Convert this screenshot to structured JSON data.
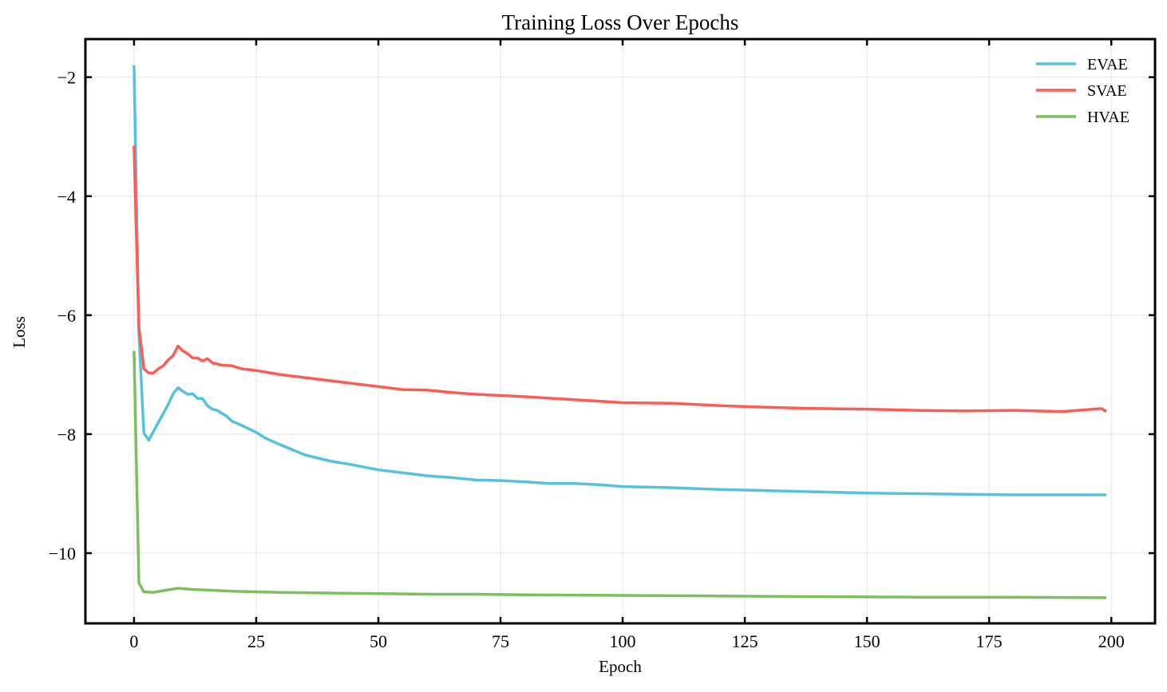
{
  "chart_data": {
    "type": "line",
    "title": "Training Loss Over Epochs",
    "xlabel": "Epoch",
    "ylabel": "Loss",
    "xlim": [
      -9.95,
      208.95
    ],
    "ylim": [
      -11.18,
      -1.36
    ],
    "xticks": [
      0,
      25,
      50,
      75,
      100,
      125,
      150,
      175,
      200
    ],
    "xtick_labels": [
      "0",
      "25",
      "50",
      "75",
      "100",
      "125",
      "150",
      "175",
      "200"
    ],
    "yticks": [
      -2,
      -4,
      -6,
      -8,
      -10
    ],
    "ytick_labels": [
      "−2",
      "−4",
      "−6",
      "−8",
      "−10"
    ],
    "grid": true,
    "legend": "top-right",
    "series": [
      {
        "name": "EVAE",
        "color": "#56c1de",
        "x": [
          0,
          1,
          2,
          3,
          4,
          5,
          6,
          7,
          8,
          9,
          10,
          11,
          12,
          13,
          14,
          15,
          16,
          17,
          18,
          19,
          20,
          22,
          25,
          27,
          30,
          35,
          40,
          45,
          50,
          55,
          60,
          65,
          70,
          75,
          80,
          85,
          90,
          95,
          100,
          110,
          120,
          130,
          140,
          150,
          160,
          170,
          180,
          190,
          199
        ],
        "y": [
          -1.8,
          -6.3,
          -7.98,
          -8.1,
          -7.95,
          -7.8,
          -7.65,
          -7.5,
          -7.32,
          -7.22,
          -7.28,
          -7.33,
          -7.32,
          -7.4,
          -7.4,
          -7.52,
          -7.58,
          -7.6,
          -7.65,
          -7.7,
          -7.78,
          -7.85,
          -7.97,
          -8.07,
          -8.18,
          -8.35,
          -8.45,
          -8.52,
          -8.6,
          -8.65,
          -8.7,
          -8.73,
          -8.77,
          -8.78,
          -8.8,
          -8.83,
          -8.83,
          -8.85,
          -8.88,
          -8.9,
          -8.93,
          -8.95,
          -8.97,
          -8.99,
          -9.0,
          -9.01,
          -9.02,
          -9.02,
          -9.02
        ]
      },
      {
        "name": "SVAE",
        "color": "#fd5c52",
        "x": [
          0,
          1,
          2,
          3,
          4,
          5,
          6,
          7,
          8,
          9,
          10,
          11,
          12,
          13,
          14,
          15,
          16,
          18,
          20,
          22,
          25,
          30,
          35,
          40,
          45,
          50,
          55,
          60,
          65,
          70,
          75,
          80,
          90,
          100,
          110,
          120,
          130,
          140,
          150,
          160,
          170,
          180,
          190,
          198,
          199
        ],
        "y": [
          -3.15,
          -6.2,
          -6.9,
          -6.97,
          -6.97,
          -6.9,
          -6.85,
          -6.75,
          -6.68,
          -6.52,
          -6.6,
          -6.65,
          -6.72,
          -6.72,
          -6.77,
          -6.73,
          -6.8,
          -6.84,
          -6.85,
          -6.9,
          -6.93,
          -7.0,
          -7.05,
          -7.1,
          -7.15,
          -7.2,
          -7.25,
          -7.26,
          -7.3,
          -7.33,
          -7.35,
          -7.37,
          -7.42,
          -7.47,
          -7.48,
          -7.52,
          -7.55,
          -7.57,
          -7.58,
          -7.6,
          -7.61,
          -7.6,
          -7.62,
          -7.57,
          -7.62
        ]
      },
      {
        "name": "HVAE",
        "color": "#7cbf5e",
        "x": [
          0,
          1,
          2,
          4,
          6,
          9,
          12,
          15,
          20,
          30,
          40,
          50,
          60,
          70,
          80,
          100,
          120,
          140,
          160,
          180,
          199
        ],
        "y": [
          -6.6,
          -10.5,
          -10.65,
          -10.66,
          -10.63,
          -10.59,
          -10.61,
          -10.62,
          -10.64,
          -10.66,
          -10.67,
          -10.68,
          -10.69,
          -10.69,
          -10.7,
          -10.71,
          -10.72,
          -10.73,
          -10.74,
          -10.74,
          -10.75
        ]
      }
    ]
  }
}
